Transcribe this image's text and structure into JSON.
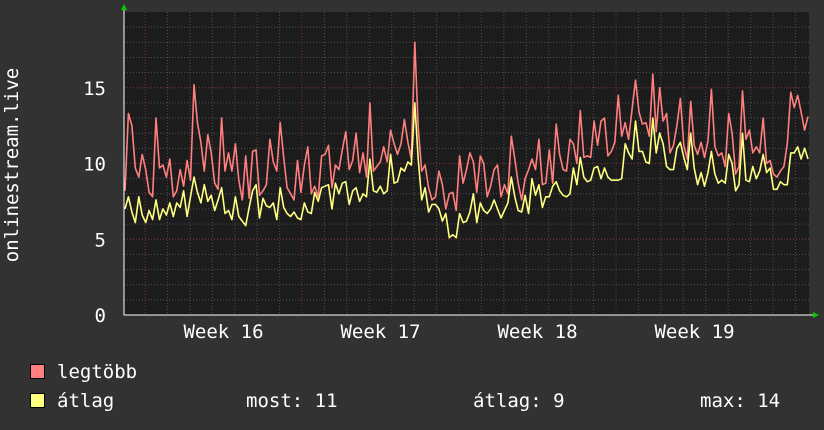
{
  "chart_data": {
    "type": "line",
    "ylabel": "onlinestream.live",
    "ylim": [
      0,
      20
    ],
    "y_ticks": [
      0,
      5,
      10,
      15
    ],
    "x_ticks": [
      "Week 16",
      "Week 17",
      "Week 18",
      "Week 19"
    ],
    "grid": true,
    "series": [
      {
        "name": "legtöbb",
        "color": "#ff7f7f",
        "values": [
          8.2,
          13.3,
          12.5,
          9.7,
          9.1,
          10.6,
          9.6,
          8.1,
          7.8,
          13.0,
          9.7,
          9.9,
          9.1,
          10.3,
          7.8,
          8.2,
          9.6,
          8.5,
          10.2,
          8.9,
          15.2,
          12.7,
          11.4,
          9.5,
          11.9,
          10.7,
          8.7,
          8.3,
          13.0,
          9.5,
          10.7,
          9.5,
          11.3,
          8.9,
          7.6,
          10.5,
          7.7,
          10.8,
          10.9,
          7.9,
          8.2,
          8.6,
          11.6,
          10.1,
          9.5,
          12.7,
          10.4,
          8.4,
          8.0,
          7.6,
          10.2,
          8.1,
          9.9,
          11.1,
          8.0,
          8.5,
          7.8,
          10.5,
          10.6,
          11.2,
          8.4,
          9.9,
          9.6,
          10.9,
          12.1,
          9.6,
          10.2,
          12.0,
          9.4,
          10.7,
          9.1,
          14.0,
          9.5,
          9.8,
          10.1,
          11.1,
          10.1,
          12.2,
          11.3,
          10.6,
          11.3,
          12.9,
          11.4,
          10.3,
          18.0,
          12.4,
          9.5,
          9.9,
          8.4,
          7.6,
          7.8,
          9.5,
          8.6,
          7.0,
          8.0,
          8.1,
          6.9,
          10.5,
          8.7,
          9.6,
          10.7,
          10.1,
          8.1,
          10.5,
          10.0,
          7.8,
          8.5,
          9.6,
          9.9,
          7.8,
          8.6,
          8.0,
          11.8,
          10.3,
          8.7,
          7.6,
          9.0,
          9.6,
          10.3,
          9.6,
          11.6,
          8.6,
          8.7,
          10.9,
          8.7,
          12.6,
          10.6,
          9.6,
          9.5,
          11.6,
          11.3,
          10.0,
          13.5,
          10.4,
          10.5,
          10.4,
          12.8,
          11.2,
          12.8,
          13.0,
          10.5,
          10.8,
          11.4,
          14.5,
          11.8,
          12.7,
          11.6,
          13.6,
          15.5,
          13.4,
          12.6,
          12.7,
          11.8,
          15.9,
          12.1,
          15.0,
          12.8,
          13.3,
          10.7,
          11.2,
          12.5,
          14.3,
          11.2,
          10.3,
          14.1,
          11.2,
          10.6,
          11.4,
          10.4,
          11.5,
          14.9,
          11.1,
          10.5,
          10.7,
          9.8,
          13.3,
          12.0,
          9.3,
          9.8,
          14.8,
          11.6,
          12.2,
          10.7,
          11.1,
          10.7,
          13.0,
          10.0,
          10.2,
          9.3,
          9.1,
          9.5,
          9.8,
          11.3,
          14.7,
          13.7,
          14.5,
          13.4,
          12.2,
          13.1
        ]
      },
      {
        "name": "átlag",
        "color": "#ffff80",
        "values": [
          7.0,
          7.8,
          6.8,
          6.1,
          7.8,
          6.6,
          6.1,
          6.9,
          6.3,
          7.6,
          6.3,
          7.0,
          6.6,
          7.4,
          6.5,
          7.4,
          7.1,
          8.2,
          6.5,
          7.8,
          9.1,
          8.1,
          7.4,
          8.6,
          7.5,
          7.9,
          6.9,
          7.6,
          8.4,
          6.7,
          6.9,
          6.3,
          7.8,
          6.5,
          6.2,
          5.9,
          7.1,
          8.2,
          8.6,
          6.4,
          7.7,
          7.2,
          7.1,
          7.4,
          6.3,
          8.4,
          7.1,
          6.7,
          6.5,
          6.8,
          6.4,
          6.3,
          7.4,
          6.8,
          6.7,
          8.1,
          7.5,
          8.4,
          8.5,
          8.6,
          7.0,
          8.7,
          8.0,
          8.7,
          8.8,
          7.3,
          8.2,
          8.4,
          7.5,
          8.0,
          7.8,
          10.3,
          8.2,
          8.1,
          8.5,
          8.0,
          8.2,
          10.6,
          8.7,
          8.8,
          9.7,
          9.5,
          10.1,
          9.9,
          14.0,
          10.3,
          7.6,
          8.4,
          6.8,
          7.3,
          7.3,
          7.0,
          6.2,
          6.7,
          5.1,
          5.3,
          5.1,
          6.7,
          6.1,
          6.2,
          6.8,
          8.0,
          6.1,
          7.4,
          6.9,
          6.7,
          7.0,
          7.6,
          7.0,
          6.4,
          6.9,
          7.4,
          9.1,
          7.8,
          6.9,
          6.8,
          7.9,
          6.7,
          9.0,
          7.9,
          8.6,
          7.1,
          7.8,
          7.8,
          8.5,
          8.8,
          8.2,
          7.9,
          7.8,
          8.0,
          9.7,
          8.6,
          10.4,
          9.1,
          8.8,
          8.9,
          9.7,
          9.8,
          9.0,
          9.7,
          9.1,
          8.9,
          8.9,
          8.9,
          9.0,
          11.3,
          10.7,
          10.3,
          12.8,
          10.8,
          10.8,
          10.1,
          10.0,
          13.0,
          10.7,
          12.0,
          11.3,
          9.8,
          9.6,
          9.6,
          11.0,
          11.4,
          10.4,
          9.6,
          12.0,
          9.7,
          8.6,
          9.4,
          8.5,
          9.4,
          10.8,
          9.3,
          8.7,
          8.9,
          8.7,
          10.6,
          10.0,
          8.2,
          8.6,
          12.0,
          8.9,
          8.8,
          9.8,
          9.0,
          9.5,
          10.6,
          9.4,
          9.7,
          8.3,
          8.3,
          8.8,
          8.6,
          8.6,
          10.7,
          10.7,
          11.1,
          10.3,
          11.0,
          10.3
        ]
      }
    ],
    "stats": {
      "most_label": "most:",
      "most_value": "11",
      "avg_label": "átlag:",
      "avg_value": "9",
      "max_label": "max:",
      "max_value": "14"
    },
    "colors": {
      "background": "#323232",
      "plot_background": "#1c1c1c",
      "grid": "#505050",
      "major_grid": "#7a3030",
      "axis_arrow": "#00cc00"
    }
  }
}
